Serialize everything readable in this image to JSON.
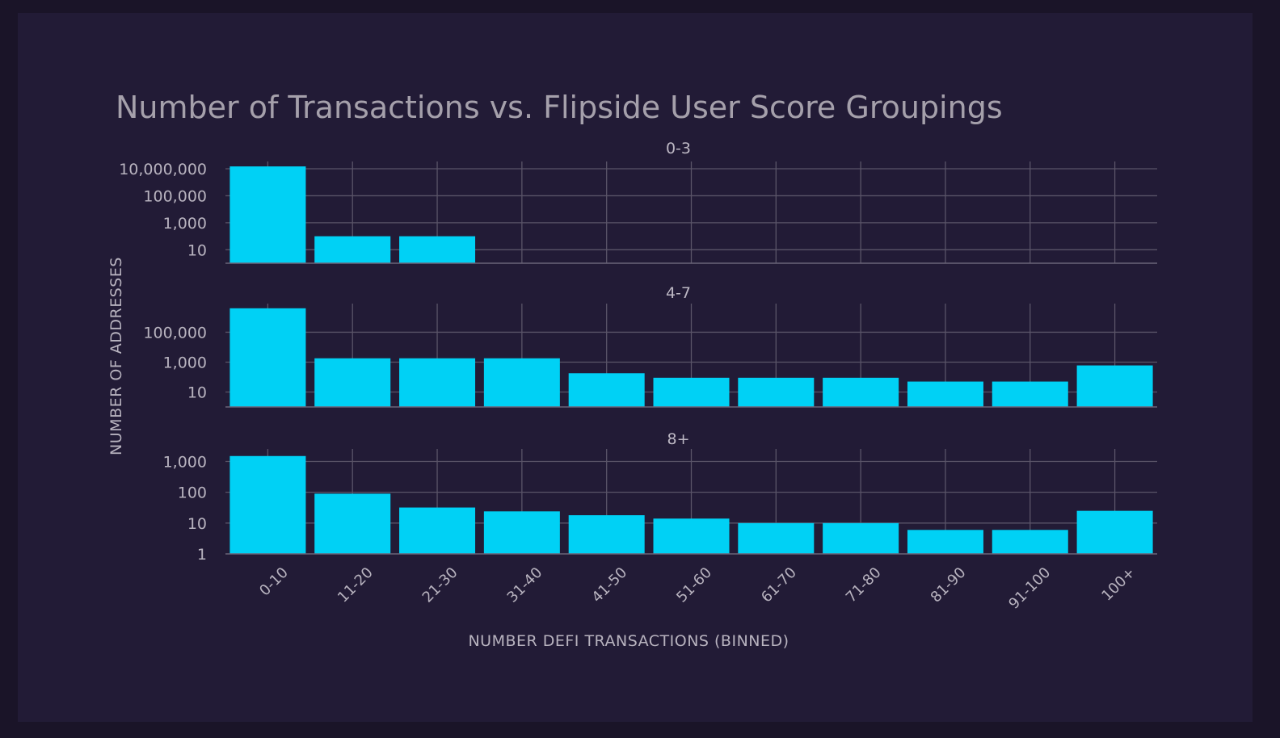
{
  "chart_data": {
    "type": "bar",
    "title": "Number of Transactions vs. Flipside User Score Groupings",
    "xlabel": "NUMBER DEFI TRANSACTIONS (BINNED)",
    "ylabel": "NUMBER OF ADDRESSES",
    "yscale": "log",
    "categories": [
      "0-10",
      "11-20",
      "21-30",
      "31-40",
      "41-50",
      "51-60",
      "61-70",
      "71-80",
      "81-90",
      "91-100",
      "100+"
    ],
    "bar_color": "#00d1f5",
    "grid": true,
    "panels": [
      {
        "name": "0-3",
        "yticks": [
          10,
          1000,
          100000,
          10000000
        ],
        "ytick_labels": [
          "10",
          "1,000",
          "100,000",
          "10,000,000"
        ],
        "ylim": [
          1,
          20000000
        ],
        "values": [
          15000000,
          100,
          100,
          null,
          null,
          null,
          null,
          null,
          null,
          null,
          null
        ]
      },
      {
        "name": "4-7",
        "yticks": [
          10,
          1000,
          100000
        ],
        "ytick_labels": [
          "10",
          "1,000",
          "100,000"
        ],
        "ylim": [
          1,
          5000000
        ],
        "values": [
          4000000,
          1800,
          1800,
          1800,
          180,
          90,
          90,
          90,
          50,
          50,
          600
        ]
      },
      {
        "name": "8+",
        "yticks": [
          1,
          10,
          100,
          1000
        ],
        "ytick_labels": [
          "1",
          "10",
          "100",
          "1,000"
        ],
        "ylim": [
          1,
          2000
        ],
        "values": [
          1500,
          90,
          32,
          24,
          18,
          14,
          10,
          10,
          6,
          6,
          25
        ]
      }
    ]
  }
}
